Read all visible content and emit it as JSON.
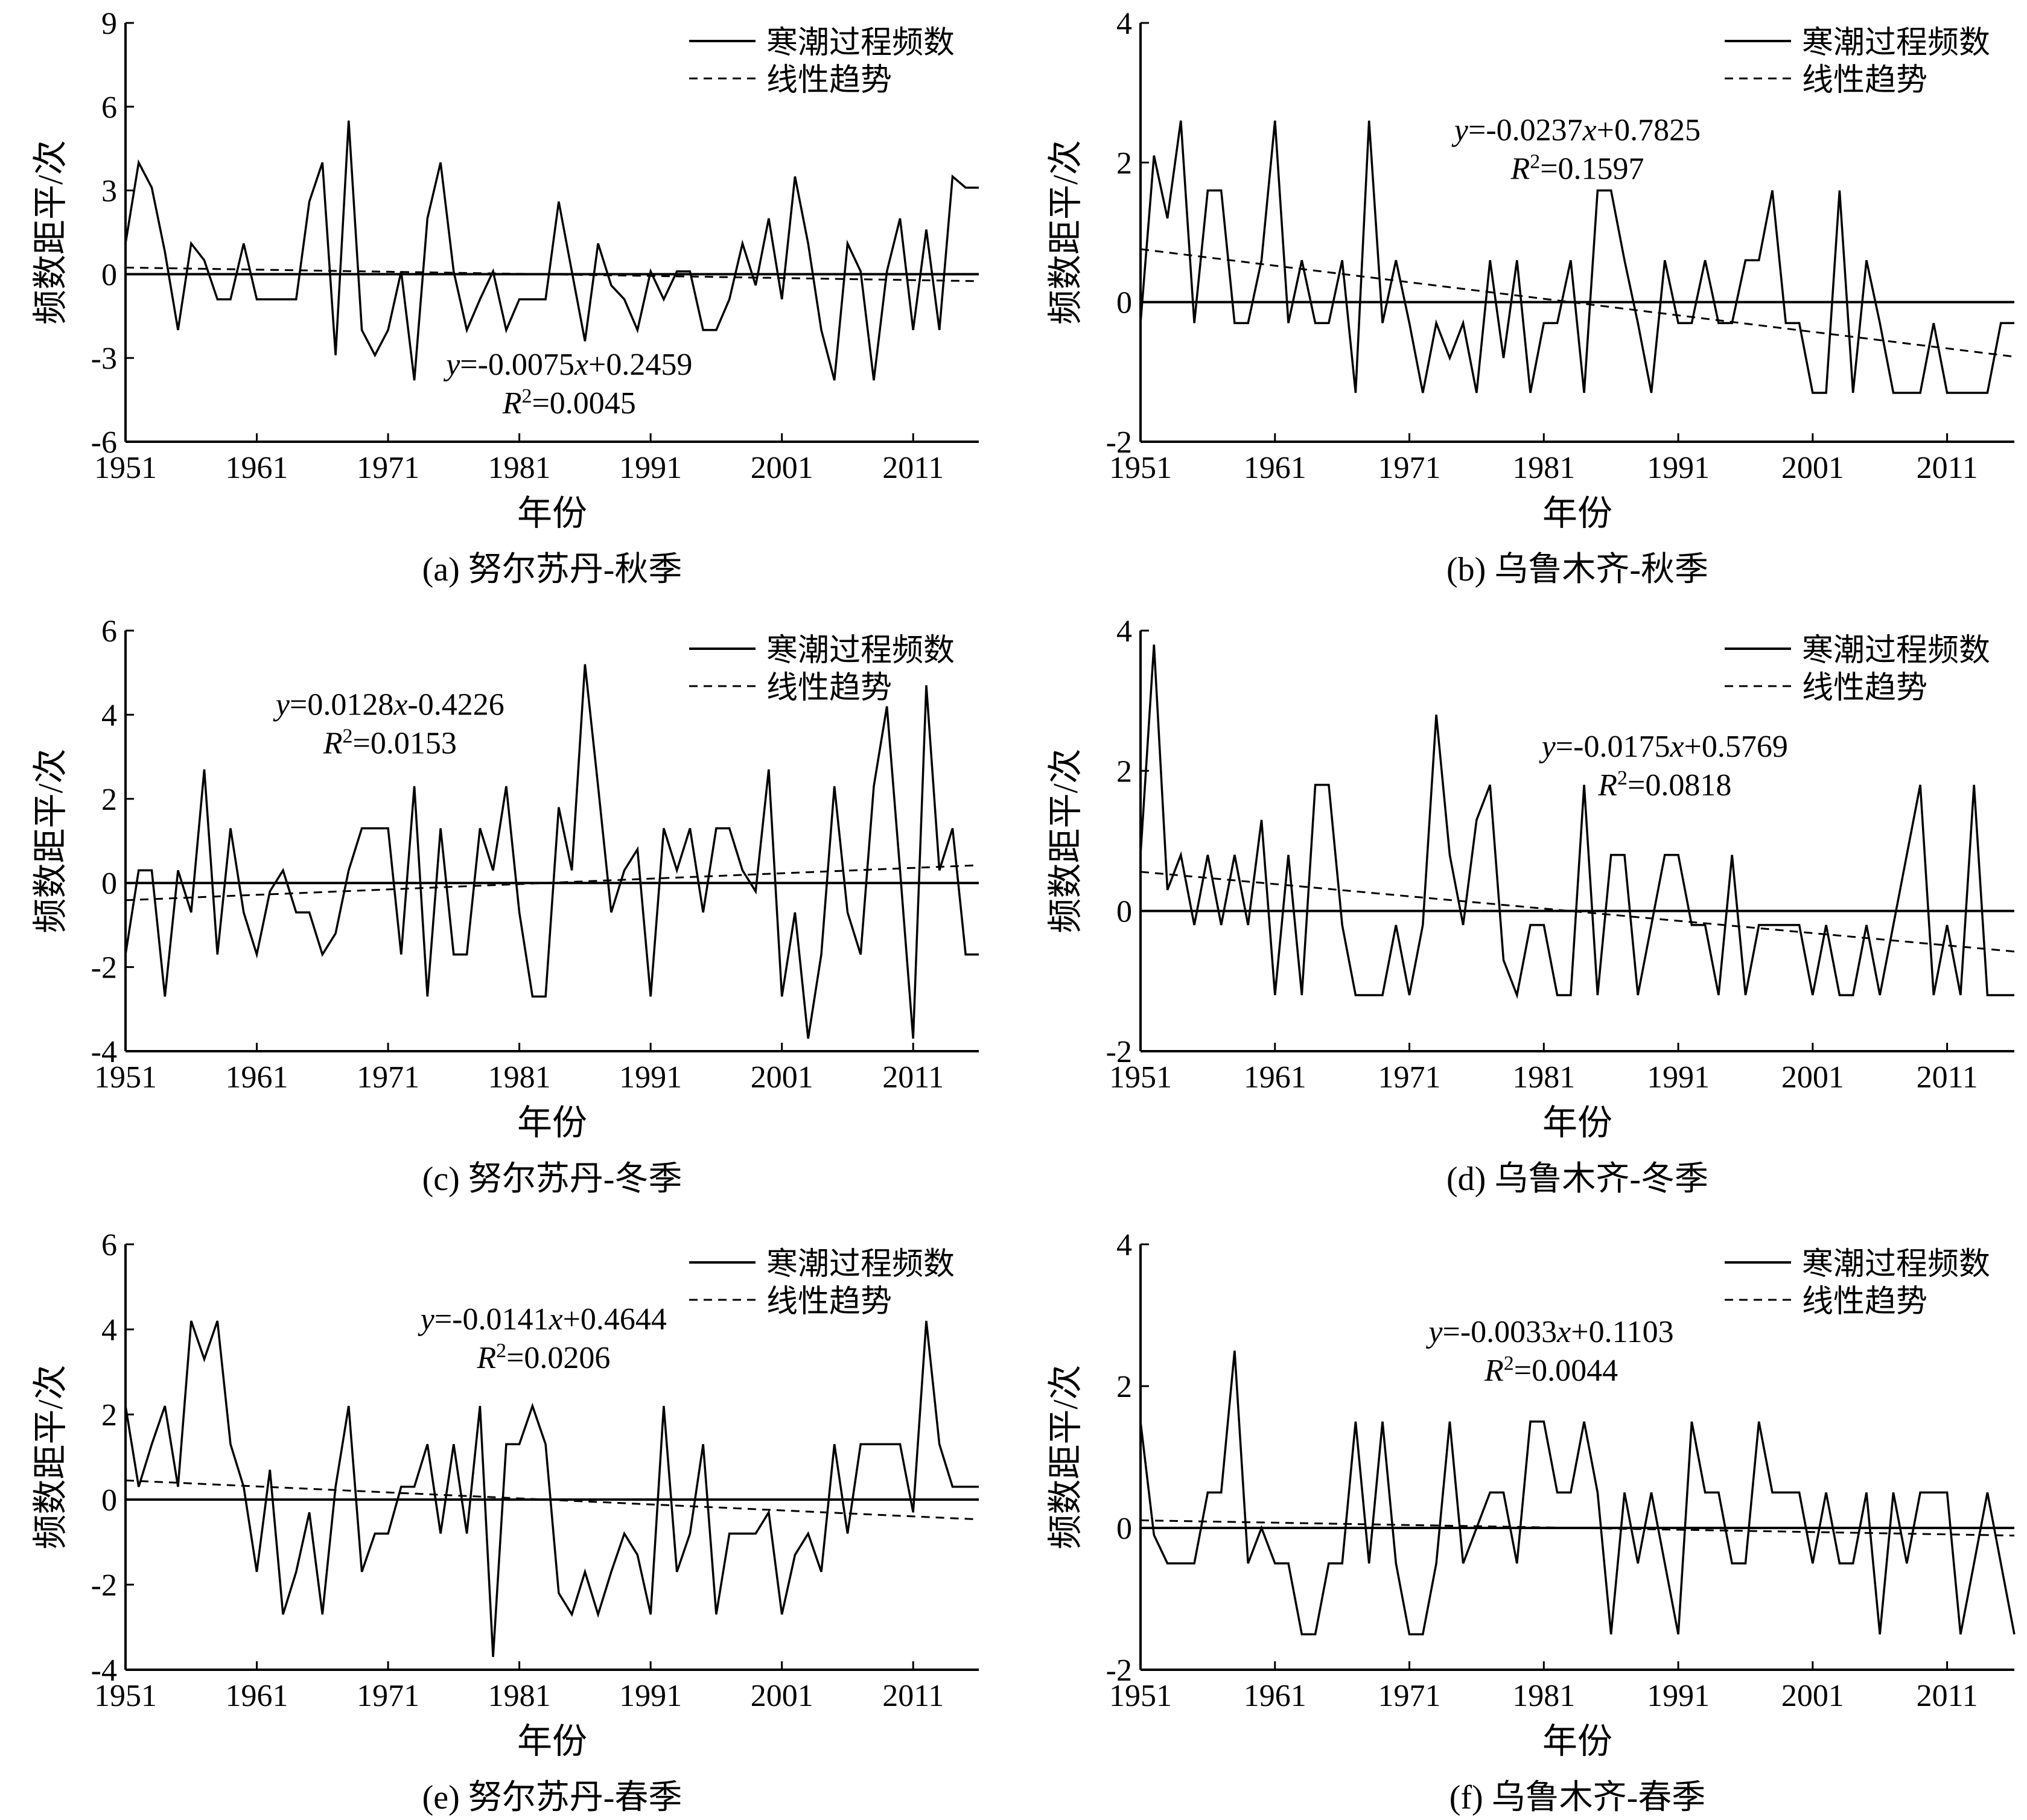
{
  "legend": {
    "observed": "寒潮过程频数",
    "trend": "线性趋势"
  },
  "chart_data": [
    {
      "type": "line",
      "panel": "a",
      "caption": "(a) 努尔苏丹-秋季",
      "xlabel": "年份",
      "ylabel": "频数距平/次",
      "xlim": [
        1951,
        2016
      ],
      "ylim": [
        -6,
        9
      ],
      "yticks": [
        -6,
        -3,
        0,
        3,
        6,
        9
      ],
      "xticks": [
        1951,
        1961,
        1971,
        1981,
        1991,
        2001,
        2011
      ],
      "legend_position": "top-right",
      "equation": {
        "y": "y",
        "eq1": "=-0.0075",
        "x": "x",
        "eq2": "+0.2459",
        "R": "R",
        "sup": "2",
        "r2": "=0.0045"
      },
      "trend": {
        "slope": -0.0075,
        "intercept": 0.2459
      },
      "series": [
        {
          "name": "寒潮过程频数",
          "x": [
            1951,
            1952,
            1953,
            1954,
            1955,
            1956,
            1957,
            1958,
            1959,
            1960,
            1961,
            1962,
            1963,
            1964,
            1965,
            1966,
            1967,
            1968,
            1969,
            1970,
            1971,
            1972,
            1973,
            1974,
            1975,
            1976,
            1977,
            1978,
            1979,
            1980,
            1981,
            1982,
            1983,
            1984,
            1985,
            1986,
            1987,
            1988,
            1989,
            1990,
            1991,
            1992,
            1993,
            1994,
            1995,
            1996,
            1997,
            1998,
            1999,
            2000,
            2001,
            2002,
            2003,
            2004,
            2005,
            2006,
            2007,
            2008,
            2009,
            2010,
            2011,
            2012,
            2013,
            2014,
            2015,
            2016
          ],
          "y": [
            1.1,
            4.0,
            3.1,
            0.8,
            -2.0,
            1.1,
            0.5,
            -0.9,
            -0.9,
            1.1,
            -0.9,
            -0.9,
            -0.9,
            -0.9,
            2.6,
            4.0,
            -2.9,
            5.5,
            -2.0,
            -2.9,
            -2.0,
            0.1,
            -3.8,
            2.0,
            4.0,
            0.1,
            -2.0,
            -0.9,
            0.1,
            -2.0,
            -0.9,
            -0.9,
            -0.9,
            2.6,
            0.1,
            -2.4,
            1.1,
            -0.4,
            -0.9,
            -2.0,
            0.1,
            -0.9,
            0.1,
            0.1,
            -2.0,
            -2.0,
            -0.9,
            1.1,
            -0.4,
            2.0,
            -0.9,
            3.5,
            1.1,
            -2.0,
            -3.8,
            1.1,
            0.1,
            -3.8,
            0.1,
            2.0,
            -2.0,
            1.6,
            -2.0,
            3.5,
            3.1,
            3.1
          ]
        }
      ]
    },
    {
      "type": "line",
      "panel": "b",
      "caption": "(b) 乌鲁木齐-秋季",
      "xlabel": "年份",
      "ylabel": "频数距平/次",
      "xlim": [
        1951,
        2016
      ],
      "ylim": [
        -2,
        4
      ],
      "yticks": [
        -2,
        0,
        2,
        4
      ],
      "xticks": [
        1951,
        1961,
        1971,
        1981,
        1991,
        2001,
        2011
      ],
      "legend_position": "top-right",
      "equation": {
        "y": "y",
        "eq1": "=-0.0237",
        "x": "x",
        "eq2": "+0.7825",
        "R": "R",
        "sup": "2",
        "r2": "=0.1597"
      },
      "trend": {
        "slope": -0.0237,
        "intercept": 0.7825
      },
      "series": [
        {
          "name": "寒潮过程频数",
          "x": [
            1951,
            1952,
            1953,
            1954,
            1955,
            1956,
            1957,
            1958,
            1959,
            1960,
            1961,
            1962,
            1963,
            1964,
            1965,
            1966,
            1967,
            1968,
            1969,
            1970,
            1971,
            1972,
            1973,
            1974,
            1975,
            1976,
            1977,
            1978,
            1979,
            1980,
            1981,
            1982,
            1983,
            1984,
            1985,
            1986,
            1987,
            1988,
            1989,
            1990,
            1991,
            1992,
            1993,
            1994,
            1995,
            1996,
            1997,
            1998,
            1999,
            2000,
            2001,
            2002,
            2003,
            2004,
            2005,
            2006,
            2007,
            2008,
            2009,
            2010,
            2011,
            2012,
            2013,
            2014,
            2015,
            2016
          ],
          "y": [
            -0.3,
            2.1,
            1.2,
            2.6,
            -0.3,
            1.6,
            1.6,
            -0.3,
            -0.3,
            0.6,
            2.6,
            -0.3,
            0.6,
            -0.3,
            -0.3,
            0.6,
            -1.3,
            2.6,
            -0.3,
            0.6,
            -0.3,
            -1.3,
            -0.3,
            -0.8,
            -0.3,
            -1.3,
            0.6,
            -0.8,
            0.6,
            -1.3,
            -0.3,
            -0.3,
            0.6,
            -1.3,
            1.6,
            1.6,
            0.6,
            -0.3,
            -1.3,
            0.6,
            -0.3,
            -0.3,
            0.6,
            -0.3,
            -0.3,
            0.6,
            0.6,
            1.6,
            -0.3,
            -0.3,
            -1.3,
            -1.3,
            1.6,
            -1.3,
            0.6,
            -0.3,
            -1.3,
            -1.3,
            -1.3,
            -0.3,
            -1.3,
            -1.3,
            -1.3,
            -1.3,
            -0.3,
            -0.3
          ]
        }
      ]
    },
    {
      "type": "line",
      "panel": "c",
      "caption": "(c) 努尔苏丹-冬季",
      "xlabel": "年份",
      "ylabel": "频数距平/次",
      "xlim": [
        1951,
        2016
      ],
      "ylim": [
        -4,
        6
      ],
      "yticks": [
        -4,
        -2,
        0,
        2,
        4,
        6
      ],
      "xticks": [
        1951,
        1961,
        1971,
        1981,
        1991,
        2001,
        2011
      ],
      "legend_position": "top-right",
      "equation": {
        "y": "y",
        "eq1": "=0.0128",
        "x": "x",
        "eq2": "-0.4226",
        "R": "R",
        "sup": "2",
        "r2": "=0.0153"
      },
      "trend": {
        "slope": 0.0128,
        "intercept": -0.4226
      },
      "series": [
        {
          "name": "寒潮过程频数",
          "x": [
            1951,
            1952,
            1953,
            1954,
            1955,
            1956,
            1957,
            1958,
            1959,
            1960,
            1961,
            1962,
            1963,
            1964,
            1965,
            1966,
            1967,
            1968,
            1969,
            1970,
            1971,
            1972,
            1973,
            1974,
            1975,
            1976,
            1977,
            1978,
            1979,
            1980,
            1981,
            1982,
            1983,
            1984,
            1985,
            1986,
            1987,
            1988,
            1989,
            1990,
            1991,
            1992,
            1993,
            1994,
            1995,
            1996,
            1997,
            1998,
            1999,
            2000,
            2001,
            2002,
            2003,
            2004,
            2005,
            2006,
            2007,
            2008,
            2009,
            2010,
            2011,
            2012,
            2013,
            2014,
            2015,
            2016
          ],
          "y": [
            -1.7,
            0.3,
            0.3,
            -2.7,
            0.3,
            -0.7,
            2.7,
            -1.7,
            1.3,
            -0.7,
            -1.7,
            -0.2,
            0.3,
            -0.7,
            -0.7,
            -1.7,
            -1.2,
            0.3,
            1.3,
            1.3,
            1.3,
            -1.7,
            2.3,
            -2.7,
            1.3,
            -1.7,
            -1.7,
            1.3,
            0.3,
            2.3,
            -0.7,
            -2.7,
            -2.7,
            1.8,
            0.3,
            5.2,
            2.3,
            -0.7,
            0.3,
            0.8,
            -2.7,
            1.3,
            0.3,
            1.3,
            -0.7,
            1.3,
            1.3,
            0.3,
            -0.2,
            2.7,
            -2.7,
            -0.7,
            -3.7,
            -1.7,
            2.3,
            -0.7,
            -1.7,
            2.3,
            4.2,
            0.3,
            -3.7,
            4.7,
            0.3,
            1.3,
            -1.7,
            -1.7
          ]
        }
      ]
    },
    {
      "type": "line",
      "panel": "d",
      "caption": "(d) 乌鲁木齐-冬季",
      "xlabel": "年份",
      "ylabel": "频数距平/次",
      "xlim": [
        1951,
        2016
      ],
      "ylim": [
        -2,
        4
      ],
      "yticks": [
        -2,
        0,
        2,
        4
      ],
      "xticks": [
        1951,
        1961,
        1971,
        1981,
        1991,
        2001,
        2011
      ],
      "legend_position": "top-right",
      "equation": {
        "y": "y",
        "eq1": "=-0.0175",
        "x": "x",
        "eq2": "+0.5769",
        "R": "R",
        "sup": "2",
        "r2": "=0.0818"
      },
      "trend": {
        "slope": -0.0175,
        "intercept": 0.5769
      },
      "series": [
        {
          "name": "寒潮过程频数",
          "x": [
            1951,
            1952,
            1953,
            1954,
            1955,
            1956,
            1957,
            1958,
            1959,
            1960,
            1961,
            1962,
            1963,
            1964,
            1965,
            1966,
            1967,
            1968,
            1969,
            1970,
            1971,
            1972,
            1973,
            1974,
            1975,
            1976,
            1977,
            1978,
            1979,
            1980,
            1981,
            1982,
            1983,
            1984,
            1985,
            1986,
            1987,
            1988,
            1989,
            1990,
            1991,
            1992,
            1993,
            1994,
            1995,
            1996,
            1997,
            1998,
            1999,
            2000,
            2001,
            2002,
            2003,
            2004,
            2005,
            2006,
            2007,
            2008,
            2009,
            2010,
            2011,
            2012,
            2013,
            2014,
            2015,
            2016
          ],
          "y": [
            0.8,
            3.8,
            0.3,
            0.8,
            -0.2,
            0.8,
            -0.2,
            0.8,
            -0.2,
            1.3,
            -1.2,
            0.8,
            -1.2,
            1.8,
            1.8,
            -0.2,
            -1.2,
            -1.2,
            -1.2,
            -0.2,
            -1.2,
            -0.2,
            2.8,
            0.8,
            -0.2,
            1.3,
            1.8,
            -0.7,
            -1.2,
            -0.2,
            -0.2,
            -1.2,
            -1.2,
            1.8,
            -1.2,
            0.8,
            0.8,
            -1.2,
            -0.2,
            0.8,
            0.8,
            -0.2,
            -0.2,
            -1.2,
            0.8,
            -1.2,
            -0.2,
            -0.2,
            -0.2,
            -0.2,
            -1.2,
            -0.2,
            -1.2,
            -1.2,
            -0.2,
            -1.2,
            -0.2,
            0.8,
            1.8,
            -1.2,
            -0.2,
            -1.2,
            1.8,
            -1.2,
            -1.2,
            -1.2
          ]
        }
      ]
    },
    {
      "type": "line",
      "panel": "e",
      "caption": "(e) 努尔苏丹-春季",
      "xlabel": "年份",
      "ylabel": "频数距平/次",
      "xlim": [
        1951,
        2016
      ],
      "ylim": [
        -4,
        6
      ],
      "yticks": [
        -4,
        -2,
        0,
        2,
        4,
        6
      ],
      "xticks": [
        1951,
        1961,
        1971,
        1981,
        1991,
        2001,
        2011
      ],
      "legend_position": "top-right",
      "equation": {
        "y": "y",
        "eq1": "=-0.0141",
        "x": "x",
        "eq2": "+0.4644",
        "R": "R",
        "sup": "2",
        "r2": "=0.0206"
      },
      "trend": {
        "slope": -0.0141,
        "intercept": 0.4644
      },
      "series": [
        {
          "name": "寒潮过程频数",
          "x": [
            1951,
            1952,
            1953,
            1954,
            1955,
            1956,
            1957,
            1958,
            1959,
            1960,
            1961,
            1962,
            1963,
            1964,
            1965,
            1966,
            1967,
            1968,
            1969,
            1970,
            1971,
            1972,
            1973,
            1974,
            1975,
            1976,
            1977,
            1978,
            1979,
            1980,
            1981,
            1982,
            1983,
            1984,
            1985,
            1986,
            1987,
            1988,
            1989,
            1990,
            1991,
            1992,
            1993,
            1994,
            1995,
            1996,
            1997,
            1998,
            1999,
            2000,
            2001,
            2002,
            2003,
            2004,
            2005,
            2006,
            2007,
            2008,
            2009,
            2010,
            2011,
            2012,
            2013,
            2014,
            2015,
            2016
          ],
          "y": [
            2.2,
            0.3,
            1.3,
            2.2,
            0.3,
            4.2,
            3.3,
            4.2,
            1.3,
            0.3,
            -1.7,
            0.7,
            -2.7,
            -1.7,
            -0.3,
            -2.7,
            0.3,
            2.2,
            -1.7,
            -0.8,
            -0.8,
            0.3,
            0.3,
            1.3,
            -0.8,
            1.3,
            -0.8,
            2.2,
            -3.7,
            1.3,
            1.3,
            2.2,
            1.3,
            -2.2,
            -2.7,
            -1.7,
            -2.7,
            -1.7,
            -0.8,
            -1.3,
            -2.7,
            2.2,
            -1.7,
            -0.8,
            1.3,
            -2.7,
            -0.8,
            -0.8,
            -0.8,
            -0.3,
            -2.7,
            -1.3,
            -0.8,
            -1.7,
            1.3,
            -0.8,
            1.3,
            1.3,
            1.3,
            1.3,
            -0.3,
            4.2,
            1.3,
            0.3,
            0.3,
            0.3
          ]
        }
      ]
    },
    {
      "type": "line",
      "panel": "f",
      "caption": "(f) 乌鲁木齐-春季",
      "xlabel": "年份",
      "ylabel": "频数距平/次",
      "xlim": [
        1951,
        2016
      ],
      "ylim": [
        -2,
        4
      ],
      "yticks": [
        -2,
        0,
        2,
        4
      ],
      "xticks": [
        1951,
        1961,
        1971,
        1981,
        1991,
        2001,
        2011
      ],
      "legend_position": "top-right",
      "equation": {
        "y": "y",
        "eq1": "=-0.0033",
        "x": "x",
        "eq2": "+0.1103",
        "R": "R",
        "sup": "2",
        "r2": "=0.0044"
      },
      "trend": {
        "slope": -0.0033,
        "intercept": 0.1103
      },
      "series": [
        {
          "name": "寒潮过程频数",
          "x": [
            1951,
            1952,
            1953,
            1954,
            1955,
            1956,
            1957,
            1958,
            1959,
            1960,
            1961,
            1962,
            1963,
            1964,
            1965,
            1966,
            1967,
            1968,
            1969,
            1970,
            1971,
            1972,
            1973,
            1974,
            1975,
            1976,
            1977,
            1978,
            1979,
            1980,
            1981,
            1982,
            1983,
            1984,
            1985,
            1986,
            1987,
            1988,
            1989,
            1990,
            1991,
            1992,
            1993,
            1994,
            1995,
            1996,
            1997,
            1998,
            1999,
            2000,
            2001,
            2002,
            2003,
            2004,
            2005,
            2006,
            2007,
            2008,
            2009,
            2010,
            2011,
            2012,
            2013,
            2014,
            2015,
            2016
          ],
          "y": [
            1.5,
            -0.1,
            -0.5,
            -0.5,
            -0.5,
            0.5,
            0.5,
            2.5,
            -0.5,
            0.0,
            -0.5,
            -0.5,
            -1.5,
            -1.5,
            -0.5,
            -0.5,
            1.5,
            -0.5,
            1.5,
            -0.5,
            -1.5,
            -1.5,
            -0.5,
            1.5,
            -0.5,
            0.0,
            0.5,
            0.5,
            -0.5,
            1.5,
            1.5,
            0.5,
            0.5,
            1.5,
            0.5,
            -1.5,
            0.5,
            -0.5,
            0.5,
            -0.5,
            -1.5,
            1.5,
            0.5,
            0.5,
            -0.5,
            -0.5,
            1.5,
            0.5,
            0.5,
            0.5,
            -0.5,
            0.5,
            -0.5,
            -0.5,
            0.5,
            -1.5,
            0.5,
            -0.5,
            0.5,
            0.5,
            0.5,
            -1.5,
            -0.5,
            0.5,
            -0.5,
            -1.5
          ]
        }
      ]
    }
  ]
}
